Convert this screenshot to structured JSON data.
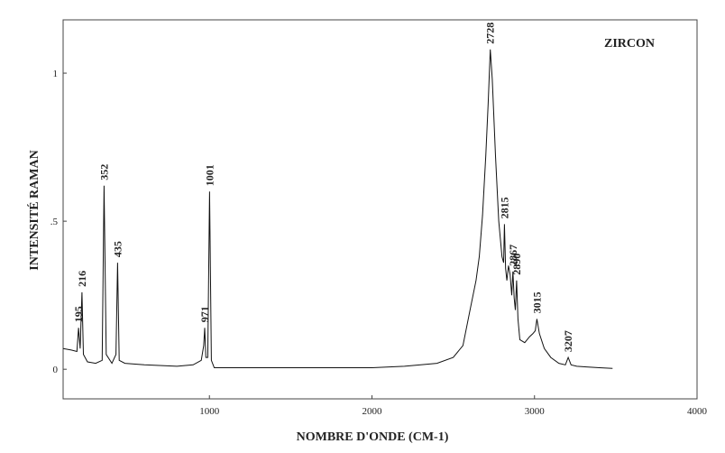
{
  "chart_data": {
    "type": "line",
    "title": "ZIRCON",
    "xlabel": "NOMBRE D'ONDE (CM-1)",
    "ylabel": "INTENSITÉ RAMAN",
    "xlim": [
      100,
      4000
    ],
    "ylim": [
      -0.1,
      1.18
    ],
    "x_ticks": [
      1000,
      2000,
      3000,
      4000
    ],
    "y_ticks": [
      0,
      0.5,
      1
    ],
    "x_tick_labels": [
      "1000",
      "2000",
      "3000",
      "4000"
    ],
    "y_tick_labels": [
      "0",
      ".5",
      "1"
    ],
    "grid": false,
    "series": [
      {
        "x": [
          100,
          150,
          185,
          195,
          205,
          216,
          225,
          250,
          300,
          340,
          352,
          365,
          400,
          425,
          435,
          445,
          480,
          600,
          800,
          900,
          950,
          965,
          971,
          978,
          990,
          1001,
          1012,
          1030,
          1200,
          1500,
          1800,
          2000,
          2200,
          2400,
          2500,
          2560,
          2600,
          2640,
          2660,
          2680,
          2700,
          2715,
          2728,
          2740,
          2760,
          2780,
          2800,
          2810,
          2815,
          2822,
          2830,
          2840,
          2850,
          2860,
          2867,
          2875,
          2882,
          2890,
          2898,
          2910,
          2940,
          2970,
          2990,
          3005,
          3015,
          3030,
          3060,
          3100,
          3150,
          3190,
          3207,
          3225,
          3260,
          3320,
          3400,
          3480
        ],
        "y": [
          0.07,
          0.065,
          0.06,
          0.14,
          0.07,
          0.26,
          0.05,
          0.025,
          0.02,
          0.03,
          0.62,
          0.05,
          0.02,
          0.05,
          0.36,
          0.03,
          0.02,
          0.015,
          0.01,
          0.015,
          0.03,
          0.08,
          0.14,
          0.04,
          0.04,
          0.6,
          0.03,
          0.005,
          0.005,
          0.005,
          0.005,
          0.005,
          0.01,
          0.02,
          0.04,
          0.08,
          0.19,
          0.3,
          0.38,
          0.52,
          0.72,
          0.9,
          1.08,
          0.98,
          0.72,
          0.5,
          0.38,
          0.36,
          0.49,
          0.34,
          0.3,
          0.35,
          0.32,
          0.25,
          0.33,
          0.24,
          0.2,
          0.3,
          0.17,
          0.1,
          0.09,
          0.11,
          0.12,
          0.13,
          0.17,
          0.12,
          0.07,
          0.04,
          0.02,
          0.015,
          0.04,
          0.015,
          0.01,
          0.008,
          0.005,
          0.003
        ]
      }
    ],
    "peak_labels": [
      {
        "x": 195,
        "text": "195",
        "y": 0.14
      },
      {
        "x": 216,
        "text": "216",
        "y": 0.26
      },
      {
        "x": 352,
        "text": "352",
        "y": 0.62
      },
      {
        "x": 435,
        "text": "435",
        "y": 0.36
      },
      {
        "x": 971,
        "text": "971",
        "y": 0.14
      },
      {
        "x": 1001,
        "text": "1001",
        "y": 0.6
      },
      {
        "x": 2728,
        "text": "2728",
        "y": 1.08
      },
      {
        "x": 2815,
        "text": "2815",
        "y": 0.49
      },
      {
        "x": 2867,
        "text": "2867",
        "y": 0.33
      },
      {
        "x": 2890,
        "text": "2890",
        "y": 0.3
      },
      {
        "x": 3015,
        "text": "3015",
        "y": 0.17
      },
      {
        "x": 3207,
        "text": "3207",
        "y": 0.04
      }
    ]
  }
}
